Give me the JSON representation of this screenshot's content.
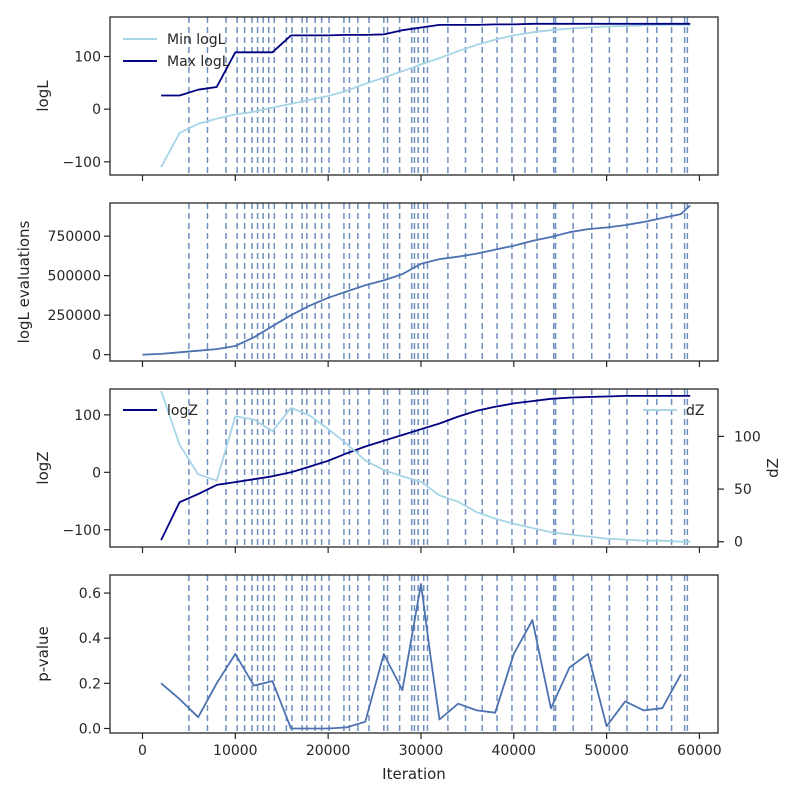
{
  "figure": {
    "xlabel": "Iteration",
    "xlim": [
      -3500,
      62000
    ],
    "xticks": [
      0,
      10000,
      20000,
      30000,
      40000,
      50000,
      60000
    ],
    "vline_color": "#6f8fbd"
  },
  "chart_data": [
    {
      "type": "line",
      "panel": "logL",
      "ylabel": "logL",
      "ylim": [
        -125,
        175
      ],
      "yticks": [
        -100,
        0,
        100
      ],
      "yticklabels": [
        "−100",
        "0",
        "100"
      ],
      "legend": "top-left",
      "x": [
        2000,
        4000,
        6000,
        8000,
        10000,
        12000,
        14000,
        16000,
        18000,
        20000,
        22000,
        24000,
        26000,
        28000,
        30000,
        32000,
        34000,
        36000,
        38000,
        40000,
        42000,
        44000,
        46000,
        48000,
        50000,
        52000,
        54000,
        56000,
        58000,
        59000
      ],
      "series": [
        {
          "name": "Min logL",
          "color": "#a6d5e6",
          "values": [
            -110,
            -45,
            -28,
            -18,
            -10,
            -5,
            3,
            10,
            18,
            25,
            35,
            48,
            60,
            72,
            85,
            97,
            110,
            122,
            132,
            140,
            146,
            150,
            153,
            155,
            157,
            158,
            159,
            160,
            160,
            160
          ]
        },
        {
          "name": "Max logL",
          "color": "#000080",
          "values": [
            26,
            26,
            37,
            42,
            108,
            108,
            108,
            140,
            140,
            140,
            141,
            141,
            142,
            150,
            155,
            160,
            160,
            160,
            161,
            161,
            162,
            162,
            162,
            162,
            162,
            162,
            162,
            162,
            162,
            162
          ]
        }
      ]
    },
    {
      "type": "line",
      "panel": "logL_evaluations",
      "ylabel": "logL evaluations",
      "ylim": [
        -40000,
        960000
      ],
      "yticks": [
        0,
        250000,
        500000,
        750000
      ],
      "yticklabels": [
        "0",
        "250000",
        "500000",
        "750000"
      ],
      "legend": "none",
      "x": [
        0,
        2000,
        4000,
        6000,
        8000,
        10000,
        12000,
        14000,
        16000,
        18000,
        20000,
        22000,
        24000,
        26000,
        28000,
        30000,
        32000,
        34000,
        36000,
        38000,
        40000,
        42000,
        44000,
        46000,
        48000,
        50000,
        52000,
        54000,
        56000,
        58000,
        59000
      ],
      "series": [
        {
          "name": "",
          "color": "#4c72b0",
          "values": [
            0,
            5000,
            15000,
            25000,
            35000,
            55000,
            110000,
            180000,
            250000,
            310000,
            360000,
            400000,
            440000,
            470000,
            510000,
            575000,
            605000,
            620000,
            640000,
            665000,
            690000,
            720000,
            745000,
            775000,
            795000,
            805000,
            820000,
            840000,
            865000,
            890000,
            945000
          ]
        }
      ]
    },
    {
      "type": "line",
      "panel": "logZ",
      "ylabel": "logZ",
      "ylabel_right": "dZ",
      "ylim": [
        -130,
        145
      ],
      "yticks": [
        -100,
        0,
        100
      ],
      "yticklabels": [
        "−100",
        "0",
        "100"
      ],
      "ylim_right": [
        -5,
        145
      ],
      "yticks_right": [
        0,
        50,
        100
      ],
      "yticklabels_right": [
        "0",
        "50",
        "100"
      ],
      "legend": [
        "top-left",
        "top-right"
      ],
      "x": [
        2000,
        4000,
        6000,
        8000,
        10000,
        12000,
        14000,
        16000,
        18000,
        20000,
        22000,
        24000,
        26000,
        28000,
        30000,
        32000,
        34000,
        36000,
        38000,
        40000,
        42000,
        44000,
        46000,
        48000,
        50000,
        52000,
        54000,
        56000,
        58000,
        59000
      ],
      "series": [
        {
          "name": "logZ",
          "axis": "left",
          "color": "#000080",
          "values": [
            -118,
            -52,
            -38,
            -22,
            -17,
            -12,
            -7,
            0,
            10,
            20,
            33,
            45,
            55,
            65,
            75,
            85,
            97,
            107,
            114,
            120,
            124,
            128,
            130,
            131,
            132,
            133,
            133,
            133,
            133,
            133
          ]
        },
        {
          "name": "dZ",
          "axis": "right",
          "color": "#a6d5e6",
          "values": [
            143,
            92,
            64,
            58,
            119,
            116,
            105,
            127,
            120,
            107,
            93,
            77,
            68,
            62,
            57,
            44,
            38,
            28,
            22,
            17,
            13,
            9,
            7,
            5,
            3,
            2,
            1,
            1,
            0,
            0
          ]
        }
      ]
    },
    {
      "type": "line",
      "panel": "p_value",
      "ylabel": "p-value",
      "ylim": [
        -0.02,
        0.68
      ],
      "yticks": [
        0,
        0.2,
        0.4,
        0.6
      ],
      "yticklabels": [
        "0.0",
        "0.2",
        "0.4",
        "0.6"
      ],
      "legend": "none",
      "x": [
        2000,
        4000,
        6000,
        8000,
        10000,
        12000,
        14000,
        16000,
        18000,
        20000,
        22000,
        24000,
        26000,
        28000,
        30000,
        31000,
        32000,
        34000,
        36000,
        38000,
        40000,
        42000,
        44000,
        46000,
        48000,
        50000,
        52000,
        54000,
        56000,
        58000
      ],
      "series": [
        {
          "name": "",
          "color": "#4c72b0",
          "values": [
            0.2,
            0.13,
            0.05,
            0.2,
            0.33,
            0.19,
            0.21,
            0.0,
            0.0,
            0.0,
            0.005,
            0.03,
            0.33,
            0.17,
            0.64,
            0.33,
            0.04,
            0.11,
            0.08,
            0.07,
            0.33,
            0.48,
            0.09,
            0.27,
            0.33,
            0.01,
            0.12,
            0.08,
            0.09,
            0.24
          ]
        }
      ]
    }
  ],
  "vlines": [
    5000,
    7000,
    9000,
    10200,
    11000,
    11800,
    12400,
    13000,
    13600,
    14200,
    15500,
    16100,
    17200,
    17700,
    18600,
    19300,
    20100,
    21700,
    22300,
    23200,
    24400,
    26000,
    26400,
    27700,
    29000,
    29300,
    29700,
    30300,
    30700,
    32900,
    34800,
    36600,
    38200,
    39800,
    41200,
    42500,
    44300,
    44500,
    46400,
    48400,
    50300,
    52200,
    54400,
    55400,
    57000,
    58400,
    58700
  ]
}
